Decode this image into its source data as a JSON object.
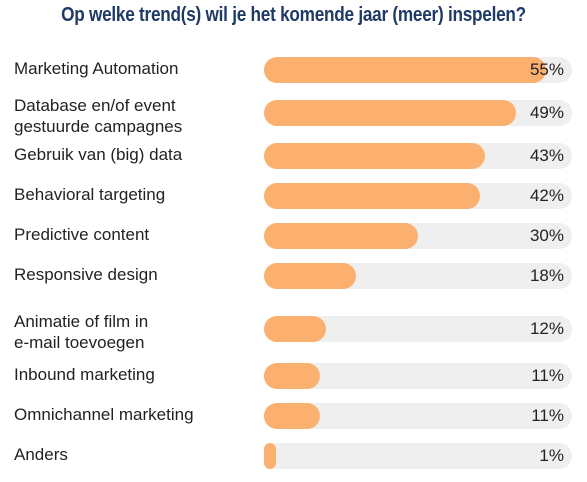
{
  "chart_data": {
    "type": "bar",
    "orientation": "horizontal",
    "title": "Op welke trend(s) wil je het komende jaar (meer) inspelen?",
    "categories": [
      "Marketing Automation",
      "Database en/of event\ngestuurde campagnes",
      "Gebruik van (big) data",
      "Behavioral targeting",
      "Predictive content",
      "Responsive design",
      "Animatie of film in\ne-mail toevoegen",
      "Inbound marketing",
      "Omnichannel marketing",
      "Anders"
    ],
    "values": [
      55,
      49,
      43,
      42,
      30,
      18,
      12,
      11,
      11,
      1
    ],
    "value_labels": [
      "55%",
      "49%",
      "43%",
      "42%",
      "30%",
      "18%",
      "12%",
      "11%",
      "11%",
      "1%"
    ],
    "xlim": [
      0,
      60
    ],
    "unit": "%",
    "grid": false,
    "colors": {
      "bar": "#fbb06f",
      "track": "#efefef",
      "title": "#1f3a66",
      "text": "#222222"
    }
  }
}
